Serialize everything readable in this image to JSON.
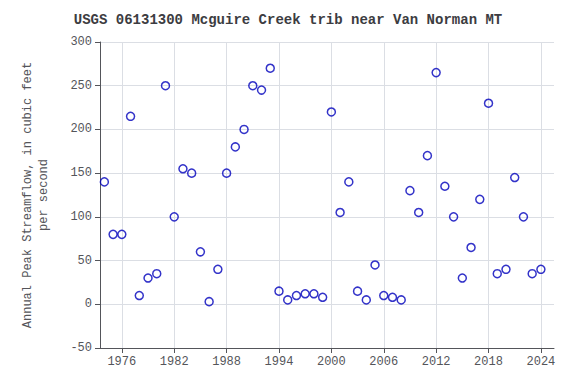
{
  "chart_data": {
    "type": "scatter",
    "title": "USGS 06131300 Mcguire Creek trib near Van Norman MT",
    "ylabel": "Annual Peak Streamflow, in cubic feet\nper second",
    "x": [
      1974,
      1975,
      1976,
      1977,
      1978,
      1979,
      1980,
      1981,
      1982,
      1983,
      1984,
      1985,
      1986,
      1987,
      1988,
      1989,
      1990,
      1991,
      1992,
      1993,
      1994,
      1995,
      1996,
      1997,
      1998,
      1999,
      2000,
      2001,
      2002,
      2003,
      2004,
      2005,
      2006,
      2007,
      2008,
      2009,
      2010,
      2011,
      2012,
      2013,
      2014,
      2015,
      2016,
      2017,
      2018,
      2019,
      2020,
      2021,
      2022,
      2023,
      2024
    ],
    "values": [
      140,
      80,
      80,
      215,
      10,
      30,
      35,
      250,
      100,
      155,
      150,
      60,
      3,
      40,
      150,
      180,
      200,
      250,
      245,
      270,
      15,
      5,
      10,
      12,
      12,
      8,
      220,
      105,
      140,
      15,
      5,
      45,
      10,
      8,
      5,
      130,
      105,
      170,
      265,
      135,
      100,
      30,
      65,
      120,
      230,
      35,
      40,
      145,
      100,
      35,
      40
    ],
    "color": "#0000bb",
    "marker": "circle",
    "xlim": [
      1973.5,
      2025.5
    ],
    "ylim": [
      -50,
      300
    ],
    "xticks": [
      1976,
      1982,
      1988,
      1994,
      2000,
      2006,
      2012,
      2018,
      2024
    ],
    "yticks": [
      -50,
      0,
      50,
      100,
      150,
      200,
      250,
      300
    ],
    "grid": true
  }
}
